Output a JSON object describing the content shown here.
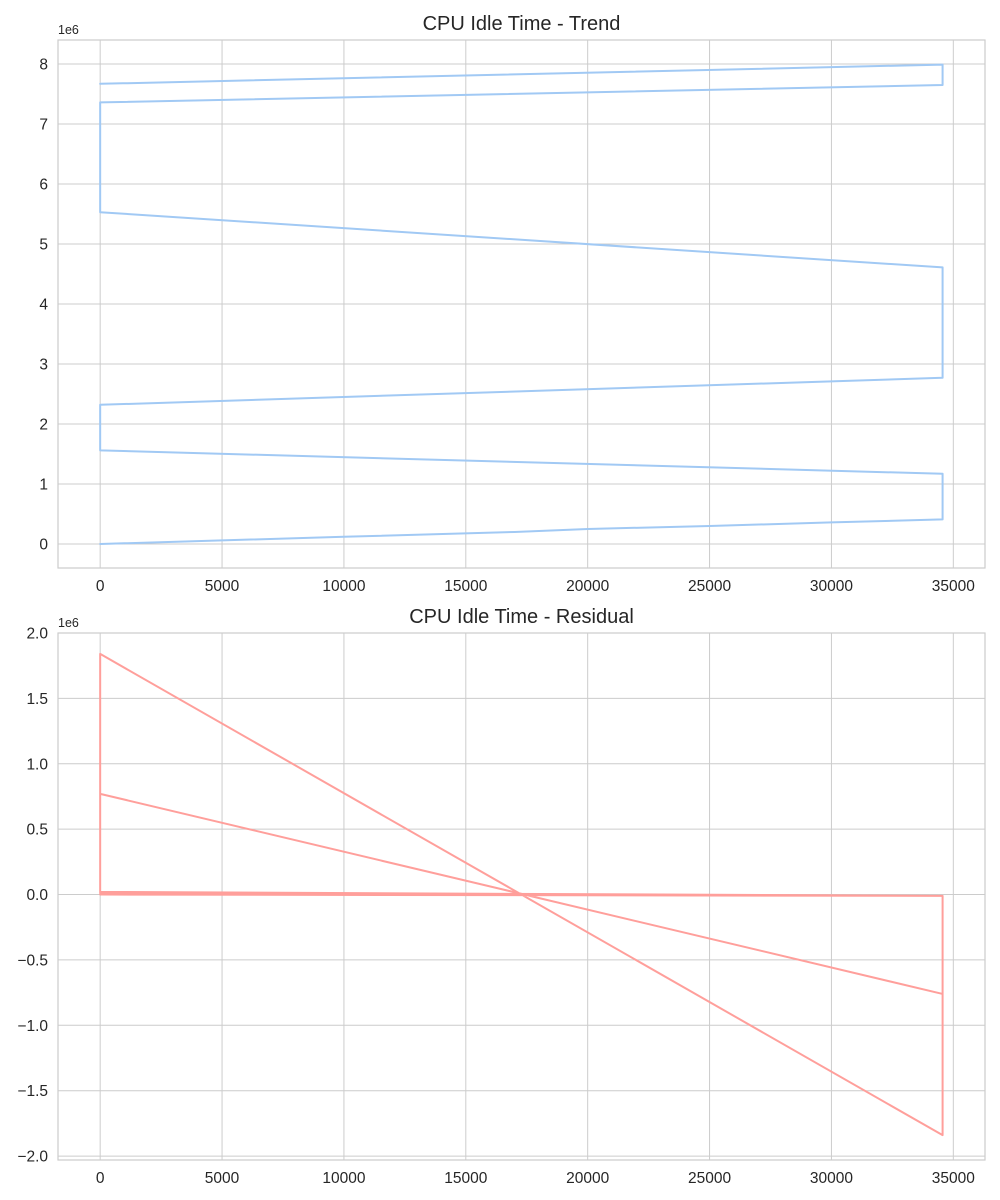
{
  "chart_data": [
    {
      "type": "line",
      "title": "CPU Idle Time - Trend",
      "xlabel": "",
      "ylabel": "",
      "y_offset_label": "1e6",
      "xlim": [
        -1730,
        36300
      ],
      "ylim": [
        -0.4,
        8.4
      ],
      "x_ticks": [
        0,
        5000,
        10000,
        15000,
        20000,
        25000,
        30000,
        35000
      ],
      "x_tick_labels": [
        "0",
        "5000",
        "10000",
        "15000",
        "20000",
        "25000",
        "30000",
        "35000"
      ],
      "y_ticks": [
        0,
        1,
        2,
        3,
        4,
        5,
        6,
        7,
        8
      ],
      "y_tick_labels": [
        "0",
        "1",
        "2",
        "3",
        "4",
        "5",
        "6",
        "7",
        "8"
      ],
      "grid": true,
      "color": "#a1c9f4",
      "series": [
        {
          "name": "",
          "x": [
            0,
            5000,
            10000,
            17000,
            20000,
            25000,
            30000,
            34560,
            34560,
            0,
            0,
            34560,
            34560,
            0,
            0,
            34560,
            34560,
            0
          ],
          "y": [
            0.0,
            0.06,
            0.12,
            0.2,
            0.25,
            0.3,
            0.36,
            0.41,
            1.17,
            1.56,
            2.32,
            2.77,
            4.61,
            5.53,
            7.36,
            7.65,
            7.99,
            7.67
          ]
        }
      ]
    },
    {
      "type": "line",
      "title": "CPU Idle Time - Residual",
      "xlabel": "",
      "ylabel": "",
      "y_offset_label": "1e6",
      "xlim": [
        -1730,
        36300
      ],
      "ylim": [
        -2.03,
        2.0
      ],
      "x_ticks": [
        0,
        5000,
        10000,
        15000,
        20000,
        25000,
        30000,
        35000
      ],
      "x_tick_labels": [
        "0",
        "5000",
        "10000",
        "15000",
        "20000",
        "25000",
        "30000",
        "35000"
      ],
      "y_ticks": [
        -2.0,
        -1.5,
        -1.0,
        -0.5,
        0.0,
        0.5,
        1.0,
        1.5,
        2.0
      ],
      "y_tick_labels": [
        "−2.0",
        "−1.5",
        "−1.0",
        "−0.5",
        "0.0",
        "0.5",
        "1.0",
        "1.5",
        "2.0"
      ],
      "grid": true,
      "color": "#ff9f9b",
      "series": [
        {
          "name": "",
          "x": [
            0,
            34560,
            34560,
            0,
            0,
            34560,
            34560,
            0,
            0,
            34560
          ],
          "y": [
            0.0,
            -0.01,
            -1.84,
            1.84,
            0.02,
            -0.01,
            -0.76,
            0.77,
            0.01,
            -0.01
          ]
        }
      ]
    }
  ]
}
